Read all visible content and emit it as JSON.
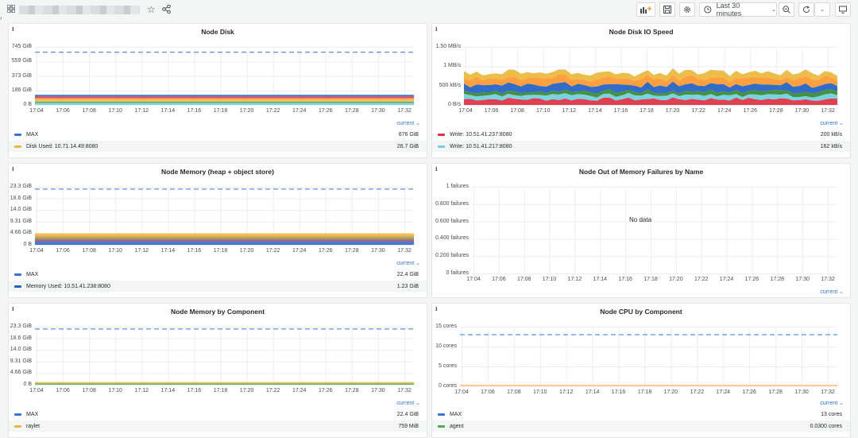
{
  "toolbar": {
    "time_range": "Last 30 minutes"
  },
  "colors": {
    "max": "#3274d9",
    "blue": "#1f60c4",
    "orange": "#ff9830",
    "yellow": "#eab839",
    "red": "#e02f44",
    "green": "#56a64b",
    "cyan": "#6ed0e0",
    "teal": "#37872d"
  },
  "x_ticks": [
    "17:04",
    "17:06",
    "17:08",
    "17:10",
    "17:12",
    "17:14",
    "17:16",
    "17:18",
    "17:20",
    "17:22",
    "17:24",
    "17:26",
    "17:28",
    "17:30",
    "17:32"
  ],
  "panels": {
    "disk": {
      "title": "Node Disk",
      "info": "i",
      "current": "current ⌄",
      "chart_data": {
        "type": "area",
        "title": "Node Disk",
        "y_ticks": [
          "745 GiB",
          "559 GiB",
          "373 GiB",
          "186 GiB",
          "0 B"
        ],
        "ylim_gib": [
          0,
          745
        ],
        "max_gib": 676,
        "used_total_gib": 130,
        "series": [
          {
            "name": "MAX",
            "value": "676 GiB"
          },
          {
            "name": "Disk Used: 10.71.14.49:8080",
            "value": "26.7 GiB"
          }
        ]
      },
      "legend": [
        {
          "name": "MAX",
          "value": "676 GiB",
          "color": "#3274d9"
        },
        {
          "name": "Disk Used: 10.71.14.49:8080",
          "value": "26.7 GiB",
          "color": "#eab839"
        }
      ]
    },
    "diskio": {
      "title": "Node Disk IO Speed",
      "info": "i",
      "current": "current ⌄",
      "chart_data": {
        "type": "area",
        "title": "Node Disk IO Speed",
        "y_ticks": [
          "1.50 MB/s",
          "1 MB/s",
          "500 kB/s",
          "0 B/s"
        ],
        "ylim_kbps": [
          0,
          1500
        ],
        "stack_total_kbps_approx": 850,
        "series": [
          {
            "name": "Write: 10.51.41.237:8080",
            "value": "200 kB/s"
          },
          {
            "name": "Write: 10.51.41.217:8080",
            "value": "162 kB/s"
          }
        ]
      },
      "legend": [
        {
          "name": "Write: 10.51.41.237:8080",
          "value": "200 kB/s",
          "color": "#e02f44"
        },
        {
          "name": "Write: 10.51.41.217:8080",
          "value": "162 kB/s",
          "color": "#6ed0e0"
        }
      ]
    },
    "memory": {
      "title": "Node Memory (heap + object store)",
      "info": "i",
      "current": "current ⌄",
      "chart_data": {
        "type": "area",
        "title": "Node Memory (heap + object store)",
        "y_ticks": [
          "23.3 GiB",
          "18.6 GiB",
          "14.0 GiB",
          "9.31 GiB",
          "4.66 GiB",
          "0 B"
        ],
        "ylim_gib": [
          0,
          23.3
        ],
        "max_gib": 22.4,
        "used_total_gib": 4.6,
        "series": [
          {
            "name": "MAX",
            "value": "22.4 GiB"
          },
          {
            "name": "Memory Used: 10.51.41.238:8080",
            "value": "1.23 GiB"
          }
        ]
      },
      "legend": [
        {
          "name": "MAX",
          "value": "22.4 GiB",
          "color": "#3274d9"
        },
        {
          "name": "Memory Used: 10.51.41.238:8080",
          "value": "1.23 GiB",
          "color": "#1f60c4"
        }
      ]
    },
    "oom": {
      "title": "Node Out of Memory Failures by Name",
      "info": "i",
      "current": "current ⌄",
      "no_data": "No data",
      "chart_data": {
        "type": "line",
        "title": "Node Out of Memory Failures by Name",
        "y_ticks": [
          "1 failures",
          "0.800 failures",
          "0.600 failures",
          "0.400 failures",
          "0.200 failures",
          "0 failures"
        ],
        "ylim": [
          0,
          1
        ],
        "series": []
      }
    },
    "memcomp": {
      "title": "Node Memory by Component",
      "info": "i",
      "current": "current ⌄",
      "chart_data": {
        "type": "area",
        "title": "Node Memory by Component",
        "y_ticks": [
          "23.3 GiB",
          "18.6 GiB",
          "14.0 GiB",
          "9.31 GiB",
          "4.66 GiB",
          "0 B"
        ],
        "ylim_gib": [
          0,
          23.3
        ],
        "max_gib": 22.4,
        "series": [
          {
            "name": "MAX",
            "value": "22.4 GiB"
          },
          {
            "name": "raylet",
            "value": "759 MiB"
          }
        ]
      },
      "legend": [
        {
          "name": "MAX",
          "value": "22.4 GiB",
          "color": "#3274d9"
        },
        {
          "name": "raylet",
          "value": "759 MiB",
          "color": "#eab839"
        }
      ]
    },
    "cpucomp": {
      "title": "Node CPU by Component",
      "info": "i",
      "current": "current ⌄",
      "chart_data": {
        "type": "line",
        "title": "Node CPU by Component",
        "y_ticks": [
          "15 cores",
          "10 cores",
          "5 cores",
          "0 cores"
        ],
        "ylim": [
          0,
          15
        ],
        "max_cores": 13,
        "series": [
          {
            "name": "MAX",
            "value": "13 cores"
          },
          {
            "name": "agent",
            "value": "0.0300 cores"
          }
        ]
      },
      "legend": [
        {
          "name": "MAX",
          "value": "13 cores",
          "color": "#3274d9"
        },
        {
          "name": "agent",
          "value": "0.0300 cores",
          "color": "#56a64b"
        }
      ]
    }
  }
}
